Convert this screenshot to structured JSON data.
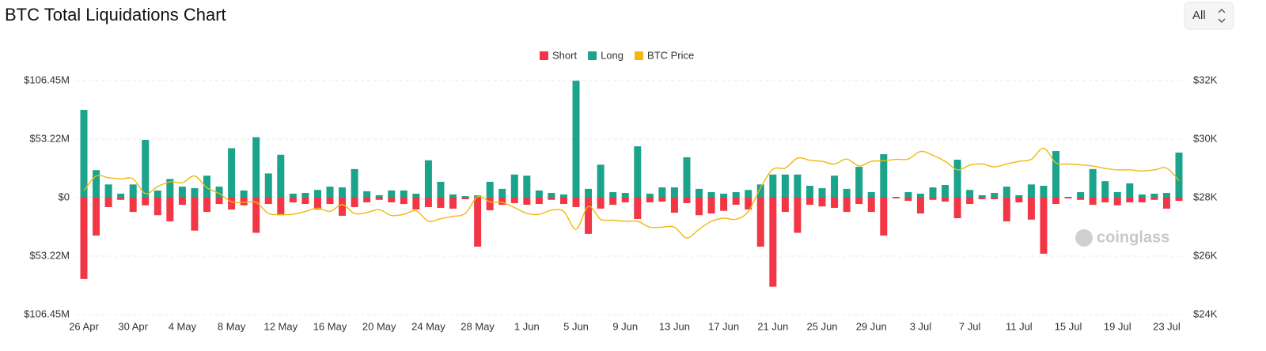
{
  "chart_data": {
    "type": "bar",
    "title": "BTC Total Liquidations Chart",
    "watermark": "coinglass",
    "categories": [
      "26 Apr",
      null,
      null,
      null,
      "30 Apr",
      null,
      null,
      null,
      "4 May",
      null,
      null,
      null,
      "8 May",
      null,
      null,
      null,
      "12 May",
      null,
      null,
      null,
      "16 May",
      null,
      null,
      null,
      "20 May",
      null,
      null,
      null,
      "24 May",
      null,
      null,
      null,
      "28 May",
      null,
      null,
      null,
      "1 Jun",
      null,
      null,
      null,
      "5 Jun",
      null,
      null,
      null,
      "9 Jun",
      null,
      null,
      null,
      "13 Jun",
      null,
      null,
      null,
      "17 Jun",
      null,
      null,
      null,
      "21 Jun",
      null,
      null,
      null,
      "25 Jun",
      null,
      null,
      null,
      "29 Jun",
      null,
      null,
      null,
      "3 Jul",
      null,
      null,
      null,
      "7 Jul",
      null,
      null,
      null,
      "11 Jul",
      null,
      null,
      null,
      "15 Jul",
      null,
      null,
      null,
      "19 Jul",
      null,
      null,
      null,
      "23 Jul",
      null
    ],
    "series": [
      {
        "name": "Short",
        "color": "#f23645",
        "values": [
          -74,
          -34.5,
          -8.6,
          -2,
          -13,
          -7,
          -16,
          -21.6,
          -6.5,
          -30,
          -13,
          -5.8,
          -10.8,
          -7,
          -32,
          -5.8,
          -16,
          -4.3,
          -5.8,
          -10.8,
          -5.8,
          -16.5,
          -8.6,
          -4.3,
          -2,
          -4.3,
          -5.8,
          -10.8,
          -8.6,
          -9.3,
          -10,
          -1.4,
          -44.6,
          -11.5,
          -6.5,
          -5,
          -6.5,
          -5.8,
          -2,
          -5.8,
          -8.6,
          -33,
          -10,
          -6.5,
          -4.3,
          -19.4,
          -4.3,
          -3.6,
          -13.7,
          -5,
          -16,
          -14.4,
          -12,
          -6.5,
          -10.8,
          -44.6,
          -81,
          -13,
          -32,
          -6.5,
          -8,
          -9.3,
          -13,
          -5.8,
          -13,
          -34.5,
          -0.7,
          -2.9,
          -14.4,
          -2,
          -3.6,
          -18.7,
          -5.8,
          -1.4,
          -1.4,
          -21.6,
          -4.3,
          -20,
          -51,
          -5.8,
          -0.7,
          -2,
          -6.5,
          -4.3,
          -7,
          -4.3,
          -4.3,
          -2,
          -10,
          -2.9
        ]
      },
      {
        "name": "Long",
        "color": "#1ba38c",
        "values": [
          79.8,
          25,
          12,
          3.6,
          12,
          52.5,
          6.5,
          17,
          10,
          8.6,
          20,
          10,
          45,
          6.5,
          55,
          22,
          39,
          3.6,
          4.3,
          7,
          10,
          9.3,
          26,
          5.8,
          2.2,
          6.5,
          6.5,
          3.6,
          34,
          14.4,
          2.9,
          1.4,
          2,
          14.4,
          8,
          21,
          20,
          6.5,
          4.3,
          2.9,
          106.4,
          8,
          30,
          5,
          4.3,
          46.7,
          3.6,
          9.3,
          9.3,
          36.7,
          8,
          5,
          3.6,
          5,
          7,
          12,
          21,
          21,
          21,
          10.8,
          8.6,
          20,
          8,
          28,
          5,
          39.5,
          0.7,
          5,
          3.6,
          9.3,
          11.5,
          34.5,
          7,
          2.2,
          4.3,
          10,
          2.2,
          12,
          10.8,
          42.4,
          0.7,
          5,
          26,
          15,
          5,
          13,
          2.9,
          3.6,
          4.3,
          41
        ]
      },
      {
        "name": "BTC Price",
        "color": "#f0b90b",
        "type": "line",
        "axis": "y2",
        "values": [
          28.24,
          28.74,
          28.68,
          28.64,
          28.64,
          28.14,
          28.38,
          28.54,
          28.51,
          28.74,
          28.34,
          28.14,
          27.86,
          27.84,
          27.84,
          27.46,
          27.42,
          27.43,
          27.53,
          27.64,
          27.53,
          27.76,
          27.46,
          27.49,
          27.59,
          27.39,
          27.43,
          27.55,
          27.19,
          27.28,
          27.36,
          27.46,
          28.03,
          27.86,
          27.84,
          27.66,
          27.46,
          27.43,
          27.57,
          27.53,
          26.92,
          27.7,
          27.26,
          27.23,
          27.19,
          27.19,
          26.99,
          26.99,
          26.99,
          26.62,
          26.92,
          27.19,
          27.3,
          27.26,
          27.53,
          28.34,
          28.97,
          29.01,
          29.35,
          29.28,
          29.24,
          29.15,
          29.32,
          29.08,
          29.24,
          29.26,
          29.31,
          29.32,
          29.58,
          29.45,
          29.24,
          28.95,
          29.11,
          29.15,
          29.05,
          29.15,
          29.24,
          29.31,
          29.69,
          29.19,
          29.15,
          29.12,
          29.08,
          29,
          28.95,
          28.95,
          28.91,
          28.95,
          29.01,
          28.58
        ]
      }
    ],
    "ylim": [
      -106.45,
      106.45
    ],
    "yticks": [
      {
        "value": -106.45,
        "label": "$106.45M"
      },
      {
        "value": -53.22,
        "label": "$53.22M"
      },
      {
        "value": 0,
        "label": "$0"
      },
      {
        "value": 53.22,
        "label": "$53.22M"
      },
      {
        "value": 106.45,
        "label": "$106.45M"
      }
    ],
    "y2lim": [
      24,
      32
    ],
    "y2ticks": [
      {
        "value": 24,
        "label": "$24K"
      },
      {
        "value": 26,
        "label": "$26K"
      },
      {
        "value": 28,
        "label": "$28K"
      },
      {
        "value": 30,
        "label": "$30K"
      },
      {
        "value": 32,
        "label": "$32K"
      }
    ],
    "grid": true,
    "legend": "top"
  },
  "range_select": "All"
}
